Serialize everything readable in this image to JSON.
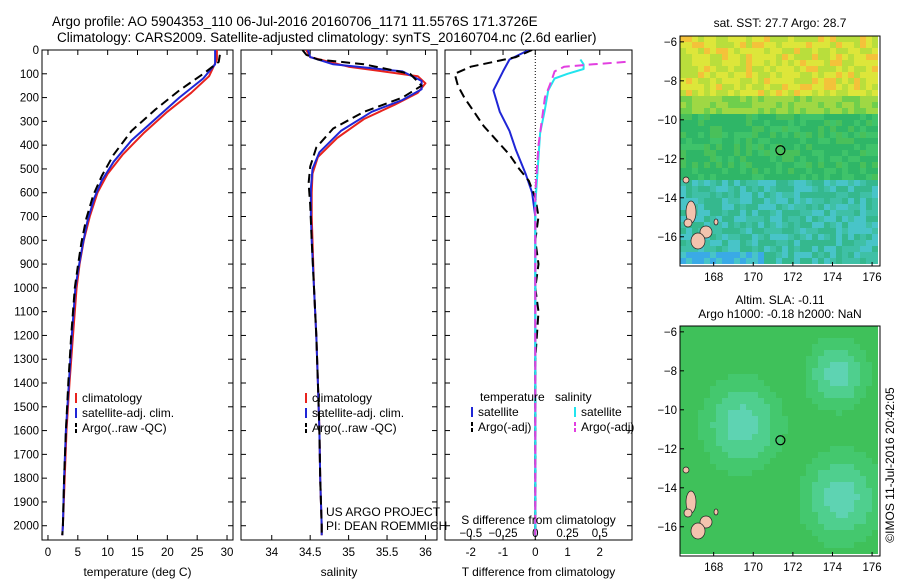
{
  "header": {
    "line1": "Argo profile: AO 5904353_110 06-Jul-2016 20160706_1171 11.5576S 171.3726E",
    "line2": "Climatology: CARS2009. Satellite-adjusted climatology: synTS_20160704.nc (2.6d earlier)"
  },
  "credits": {
    "project": "US ARGO PROJECT",
    "pi": "PI: DEAN ROEMMICH"
  },
  "timestamp": "©IMOS 11-Jul-2016 20:42:05",
  "colors": {
    "climatology": "#e8231e",
    "satellite": "#1f26d6",
    "argo": "#000000",
    "sal_satellite": "#22e4ee",
    "sal_argo": "#e23fe0"
  },
  "legend_profiles": {
    "climatology": "climatology",
    "satellite": "satellite-adj. clim.",
    "argo": "Argo(..raw -QC)"
  },
  "legend_diff": {
    "temp_title": "temperature",
    "sal_title": "salinity",
    "satellite": "satellite",
    "argo": "Argo(-adj)"
  },
  "chart_data": [
    {
      "type": "line",
      "xlabel": "temperature (deg C)",
      "ylabel": "",
      "xlim": [
        -1,
        31
      ],
      "ylim": [
        2060,
        0
      ],
      "x_ticks": [
        0,
        5,
        10,
        15,
        20,
        25,
        30
      ],
      "y_ticks": [
        0,
        100,
        200,
        300,
        400,
        500,
        600,
        700,
        800,
        900,
        1000,
        1100,
        1200,
        1300,
        1400,
        1500,
        1600,
        1700,
        1800,
        1900,
        2000
      ],
      "series": [
        {
          "name": "climatology",
          "points": [
            [
              28.3,
              0
            ],
            [
              28.3,
              40
            ],
            [
              27.0,
              110
            ],
            [
              24.0,
              180
            ],
            [
              20.0,
              260
            ],
            [
              16.0,
              350
            ],
            [
              12.5,
              440
            ],
            [
              10.0,
              520
            ],
            [
              8.3,
              600
            ],
            [
              7.0,
              700
            ],
            [
              6.0,
              800
            ],
            [
              5.3,
              900
            ],
            [
              4.8,
              1000
            ],
            [
              4.2,
              1200
            ],
            [
              3.6,
              1400
            ],
            [
              3.1,
              1600
            ],
            [
              2.8,
              1800
            ],
            [
              2.5,
              2000
            ],
            [
              2.4,
              2040
            ]
          ]
        },
        {
          "name": "satellite-adj. clim.",
          "points": [
            [
              28.0,
              0
            ],
            [
              28.0,
              60
            ],
            [
              26.0,
              120
            ],
            [
              22.0,
              200
            ],
            [
              18.0,
              290
            ],
            [
              14.0,
              380
            ],
            [
              11.0,
              470
            ],
            [
              9.0,
              550
            ],
            [
              7.8,
              620
            ],
            [
              6.6,
              720
            ],
            [
              5.8,
              820
            ],
            [
              5.1,
              920
            ],
            [
              4.6,
              1000
            ],
            [
              4.0,
              1200
            ],
            [
              3.5,
              1400
            ],
            [
              3.0,
              1600
            ],
            [
              2.7,
              1800
            ],
            [
              2.5,
              2000
            ],
            [
              2.4,
              2040
            ]
          ]
        },
        {
          "name": "Argo(..raw -QC)",
          "points": [
            [
              28.8,
              20
            ],
            [
              28.6,
              50
            ],
            [
              26.0,
              100
            ],
            [
              22.0,
              170
            ],
            [
              18.0,
              250
            ],
            [
              14.0,
              340
            ],
            [
              11.0,
              440
            ],
            [
              9.0,
              530
            ],
            [
              7.6,
              610
            ],
            [
              6.4,
              710
            ],
            [
              5.6,
              810
            ],
            [
              5.0,
              910
            ],
            [
              4.5,
              1000
            ],
            [
              3.9,
              1200
            ],
            [
              3.4,
              1400
            ],
            [
              3.0,
              1600
            ],
            [
              2.7,
              1800
            ],
            [
              2.5,
              2000
            ],
            [
              2.4,
              2040
            ]
          ]
        }
      ],
      "legend": [
        "climatology",
        "satellite-adj. clim.",
        "Argo(..raw -QC)"
      ]
    },
    {
      "type": "line",
      "xlabel": "salinity",
      "ylabel": "",
      "xlim": [
        33.6,
        36.15
      ],
      "ylim": [
        2060,
        0
      ],
      "x_ticks": [
        34,
        34.5,
        35,
        35.5,
        36
      ],
      "series": [
        {
          "name": "climatology",
          "points": [
            [
              34.45,
              0
            ],
            [
              34.5,
              30
            ],
            [
              35.0,
              70
            ],
            [
              35.9,
              110
            ],
            [
              36.0,
              140
            ],
            [
              35.9,
              180
            ],
            [
              35.6,
              230
            ],
            [
              35.2,
              290
            ],
            [
              34.85,
              370
            ],
            [
              34.6,
              450
            ],
            [
              34.53,
              520
            ],
            [
              34.52,
              600
            ],
            [
              34.52,
              700
            ],
            [
              34.53,
              800
            ],
            [
              34.55,
              1000
            ],
            [
              34.58,
              1200
            ],
            [
              34.6,
              1400
            ],
            [
              34.62,
              1600
            ],
            [
              34.63,
              1800
            ],
            [
              34.65,
              2000
            ],
            [
              34.65,
              2040
            ]
          ]
        },
        {
          "name": "satellite-adj. clim.",
          "points": [
            [
              34.47,
              0
            ],
            [
              34.5,
              30
            ],
            [
              34.8,
              60
            ],
            [
              35.7,
              90
            ],
            [
              35.95,
              130
            ],
            [
              35.95,
              165
            ],
            [
              35.7,
              210
            ],
            [
              35.3,
              260
            ],
            [
              34.9,
              340
            ],
            [
              34.62,
              430
            ],
            [
              34.53,
              500
            ],
            [
              34.51,
              580
            ],
            [
              34.51,
              700
            ],
            [
              34.52,
              800
            ],
            [
              34.55,
              1000
            ],
            [
              34.58,
              1200
            ],
            [
              34.6,
              1400
            ],
            [
              34.62,
              1600
            ],
            [
              34.63,
              1800
            ],
            [
              34.65,
              2000
            ],
            [
              34.65,
              2040
            ]
          ]
        },
        {
          "name": "Argo(..raw -QC)",
          "points": [
            [
              34.4,
              0
            ],
            [
              34.45,
              20
            ],
            [
              34.6,
              40
            ],
            [
              35.2,
              60
            ],
            [
              35.8,
              100
            ],
            [
              35.95,
              150
            ],
            [
              35.7,
              200
            ],
            [
              35.2,
              260
            ],
            [
              34.8,
              330
            ],
            [
              34.58,
              410
            ],
            [
              34.5,
              490
            ],
            [
              34.48,
              560
            ],
            [
              34.5,
              650
            ],
            [
              34.52,
              800
            ],
            [
              34.55,
              1000
            ],
            [
              34.58,
              1200
            ],
            [
              34.6,
              1400
            ],
            [
              34.62,
              1600
            ],
            [
              34.63,
              1800
            ],
            [
              34.65,
              2000
            ],
            [
              34.65,
              2040
            ]
          ]
        }
      ],
      "legend": [
        "climatology",
        "satellite-adj. clim.",
        "Argo(..raw -QC)"
      ]
    },
    {
      "type": "line",
      "xlabel": "T difference from climatology",
      "top_xlabel": "S difference from climatology",
      "xlim": [
        -2.8,
        3.0
      ],
      "ylim": [
        2060,
        0
      ],
      "x_ticks": [
        -2,
        -1,
        0,
        1,
        2
      ],
      "top_ticks": [
        -0.5,
        -0.25,
        0,
        0.25,
        0.5
      ],
      "series": [
        {
          "name": "temperature satellite",
          "points": [
            [
              -0.2,
              0
            ],
            [
              -0.8,
              40
            ],
            [
              -1.0,
              90
            ],
            [
              -1.3,
              170
            ],
            [
              -1.1,
              260
            ],
            [
              -0.8,
              340
            ],
            [
              -0.6,
              420
            ],
            [
              -0.3,
              520
            ],
            [
              -0.1,
              600
            ],
            [
              0,
              700
            ],
            [
              0,
              1000
            ],
            [
              0,
              1500
            ],
            [
              0,
              2000
            ],
            [
              0,
              2040
            ]
          ]
        },
        {
          "name": "temperature Argo(-adj)",
          "points": [
            [
              -0.1,
              0
            ],
            [
              -0.6,
              30
            ],
            [
              -1.3,
              50
            ],
            [
              -2.0,
              70
            ],
            [
              -2.5,
              100
            ],
            [
              -2.4,
              150
            ],
            [
              -2.2,
              200
            ],
            [
              -1.9,
              260
            ],
            [
              -1.6,
              320
            ],
            [
              -1.2,
              380
            ],
            [
              -0.8,
              440
            ],
            [
              -0.5,
              500
            ],
            [
              -0.2,
              550
            ],
            [
              0,
              620
            ],
            [
              0.1,
              700
            ],
            [
              0,
              800
            ],
            [
              0.1,
              900
            ],
            [
              0,
              1000
            ],
            [
              0.1,
              1100
            ],
            [
              0,
              1300
            ],
            [
              0,
              1500
            ],
            [
              0,
              1700
            ],
            [
              0,
              2040
            ]
          ]
        },
        {
          "name": "salinity satellite",
          "points": [
            [
              1.4,
              40
            ],
            [
              1.5,
              60
            ],
            [
              1.5,
              80
            ],
            [
              1.0,
              100
            ],
            [
              0.6,
              120
            ],
            [
              0.4,
              170
            ],
            [
              0.3,
              250
            ],
            [
              0.15,
              350
            ],
            [
              0.1,
              450
            ],
            [
              0.05,
              550
            ],
            [
              0,
              650
            ],
            [
              0,
              1000
            ],
            [
              0,
              1500
            ],
            [
              0,
              2040
            ]
          ]
        },
        {
          "name": "salinity Argo(-adj)",
          "points": [
            [
              2.8,
              50
            ],
            [
              1.8,
              60
            ],
            [
              0.9,
              70
            ],
            [
              0.6,
              90
            ],
            [
              0.5,
              130
            ],
            [
              0.3,
              200
            ],
            [
              0.2,
              300
            ],
            [
              0.1,
              400
            ],
            [
              0.05,
              500
            ],
            [
              0,
              600
            ],
            [
              0,
              1000
            ],
            [
              0,
              1500
            ],
            [
              0,
              2040
            ]
          ]
        }
      ],
      "legend": [
        "satellite",
        "Argo(-adj)"
      ]
    },
    {
      "type": "heatmap",
      "title": "sat. SST: 27.7 Argo: 28.7",
      "xlim": [
        166.3,
        176.4
      ],
      "ylim": [
        -17.5,
        -5.7
      ],
      "x_ticks": [
        168,
        170,
        172,
        174,
        176
      ],
      "y_ticks": [
        -6,
        -8,
        -10,
        -12,
        -14,
        -16
      ],
      "marker": [
        171.37,
        -11.56
      ]
    },
    {
      "type": "heatmap",
      "title_line1": "Altim. SLA: -0.11",
      "title_line2": "Argo h1000: -0.18 h2000: NaN",
      "xlim": [
        166.3,
        176.4
      ],
      "ylim": [
        -17.5,
        -5.7
      ],
      "x_ticks": [
        168,
        170,
        172,
        174,
        176
      ],
      "y_ticks": [
        -6,
        -8,
        -10,
        -12,
        -14,
        -16
      ],
      "marker": [
        171.37,
        -11.56
      ]
    }
  ]
}
